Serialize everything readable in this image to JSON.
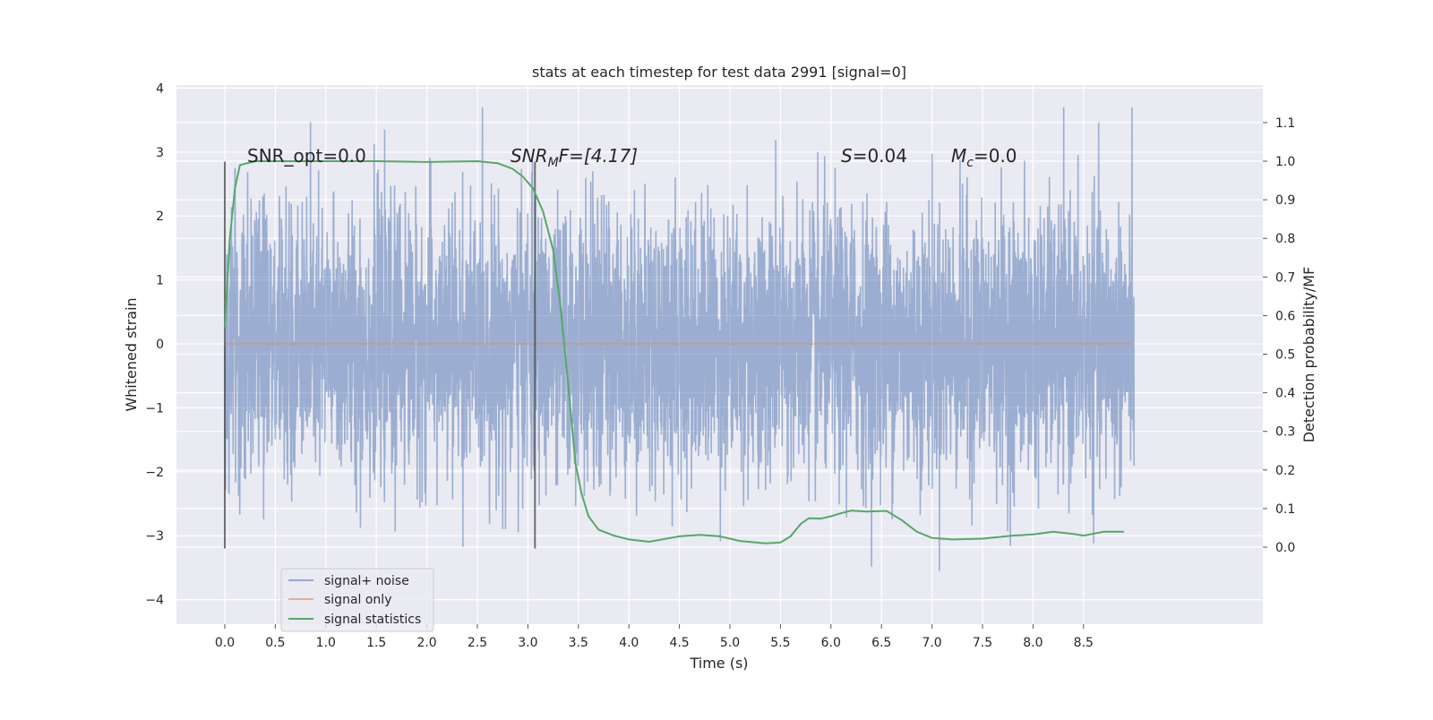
{
  "chart_data": {
    "type": "line",
    "title": "stats at each timestep for test data 2991 [signal=0]",
    "xlabel": "Time (s)",
    "ylabel": "Whitened strain",
    "ylabel_right": "Detection probability/MF",
    "xlim": [
      -0.44,
      9.4
    ],
    "ylim": [
      -4.4,
      4.15
    ],
    "ylim_right": [
      -0.2,
      1.2
    ],
    "x_ticks": [
      "0.0",
      "0.5",
      "1.0",
      "1.5",
      "2.0",
      "2.5",
      "3.0",
      "3.5",
      "4.0",
      "4.5",
      "5.0",
      "5.5",
      "6.0",
      "6.5",
      "7.0",
      "7.5",
      "8.0",
      "8.5"
    ],
    "y_ticks": [
      "−4",
      "−3",
      "−2",
      "−1",
      "0",
      "1",
      "2",
      "3",
      "4"
    ],
    "y_ticks_right": [
      "0.0",
      "0.1",
      "0.2",
      "0.3",
      "0.4",
      "0.5",
      "0.6",
      "0.7",
      "0.8",
      "0.9",
      "1.0",
      "1.1"
    ],
    "grid": true,
    "legend_position": "lower-left",
    "annotations": {
      "snr_opt": "SNR_opt=0.0",
      "snr_mf_base": "SNR",
      "snr_mf_sub": "M",
      "snr_mf_rest": "F=[4.17]",
      "s_label": "S",
      "s_value": "=0.04",
      "mc_label": "M",
      "mc_sub": "c",
      "mc_value": "=0.0"
    },
    "vertical_markers": [
      {
        "x": 0.0,
        "y_range": [
          -3.2,
          2.85
        ]
      },
      {
        "x": 3.07,
        "y_range": [
          -3.2,
          2.85
        ]
      }
    ],
    "series": [
      {
        "name": "signal+ noise",
        "color": "#4c72b0",
        "axis": "left",
        "t_range": [
          0.0,
          9.0
        ],
        "approx_range": [
          -4.0,
          3.7
        ],
        "description_of_values": "noise"
      },
      {
        "name": "signal only",
        "color": "#dd8452",
        "axis": "left",
        "x": [
          0.0,
          9.0
        ],
        "y": [
          0.0,
          0.0
        ]
      },
      {
        "name": "signal statistics",
        "color": "#55a868",
        "axis": "right",
        "x": [
          0.0,
          0.05,
          0.1,
          0.15,
          0.3,
          0.6,
          1.0,
          1.5,
          2.0,
          2.5,
          2.7,
          2.85,
          2.95,
          3.05,
          3.15,
          3.25,
          3.32,
          3.4,
          3.47,
          3.53,
          3.6,
          3.7,
          3.85,
          4.0,
          4.2,
          4.5,
          4.7,
          4.9,
          5.1,
          5.35,
          5.5,
          5.6,
          5.7,
          5.78,
          5.9,
          6.0,
          6.1,
          6.2,
          6.35,
          6.55,
          6.7,
          6.85,
          7.0,
          7.2,
          7.5,
          7.8,
          8.0,
          8.2,
          8.4,
          8.5,
          8.7,
          8.9
        ],
        "y": [
          0.57,
          0.8,
          0.93,
          0.99,
          1.0,
          1.0,
          1.0,
          1.0,
          0.998,
          1.0,
          0.995,
          0.98,
          0.96,
          0.93,
          0.87,
          0.77,
          0.63,
          0.42,
          0.22,
          0.14,
          0.08,
          0.045,
          0.03,
          0.02,
          0.014,
          0.028,
          0.032,
          0.028,
          0.016,
          0.01,
          0.012,
          0.028,
          0.06,
          0.075,
          0.074,
          0.08,
          0.088,
          0.095,
          0.092,
          0.094,
          0.07,
          0.04,
          0.024,
          0.02,
          0.022,
          0.03,
          0.033,
          0.04,
          0.034,
          0.03,
          0.04,
          0.04
        ]
      }
    ]
  }
}
